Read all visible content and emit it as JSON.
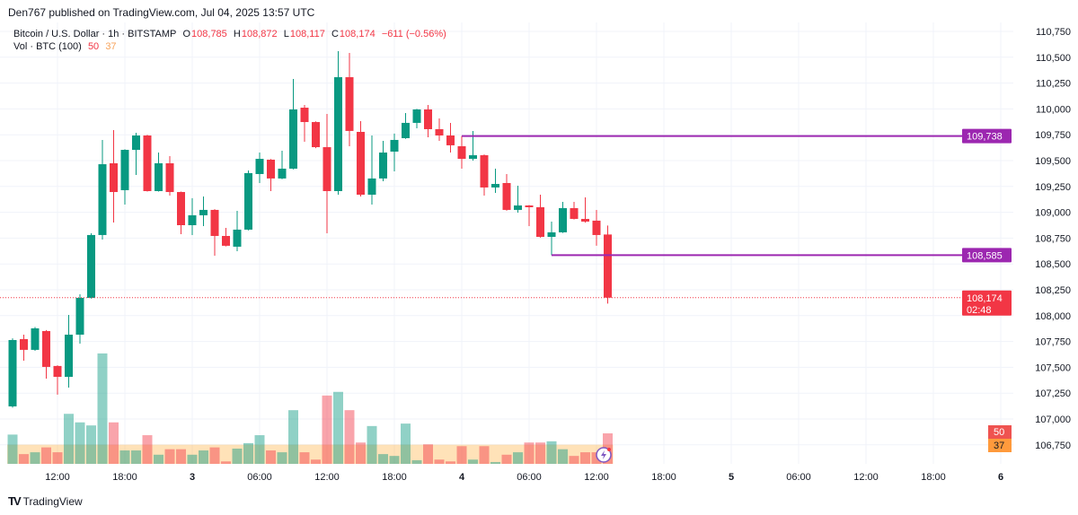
{
  "header": {
    "published": "Den767 published on TradingView.com, Jul 04, 2025 13:57 UTC"
  },
  "legend": {
    "symbol": "Bitcoin / U.S. Dollar · 1h · BITSTAMP",
    "o_label": "O",
    "o": "108,785",
    "h_label": "H",
    "h": "108,872",
    "l_label": "L",
    "l": "108,117",
    "c_label": "C",
    "c": "108,174",
    "change": "−611 (−0.56%)",
    "vol_label": "Vol · BTC (100)",
    "vol": "50",
    "vol_ma": "37"
  },
  "footer": {
    "logo_text": "TradingView"
  },
  "colors": {
    "up": "#089981",
    "down": "#f23645",
    "level": "#9c27b0",
    "vol_ma": "#ff9800"
  },
  "chart_data": {
    "type": "candlestick",
    "interval": "1h",
    "first_bar": "2025-07-02 08:00",
    "ylim": [
      106650,
      110850
    ],
    "price_ticks": [
      "110,750",
      "110,500",
      "110,250",
      "110,000",
      "109,750",
      "109,500",
      "109,250",
      "109,000",
      "108,750",
      "108,500",
      "108,250",
      "108,000",
      "107,750",
      "107,500",
      "107,250",
      "107,000",
      "106,750"
    ],
    "time_ticks": [
      {
        "label": "12:00",
        "t": "2025-07-02 12:00",
        "bold": false
      },
      {
        "label": "18:00",
        "t": "2025-07-02 18:00",
        "bold": false
      },
      {
        "label": "3",
        "t": "2025-07-03 00:00",
        "bold": true
      },
      {
        "label": "06:00",
        "t": "2025-07-03 06:00",
        "bold": false
      },
      {
        "label": "12:00",
        "t": "2025-07-03 12:00",
        "bold": false
      },
      {
        "label": "18:00",
        "t": "2025-07-03 18:00",
        "bold": false
      },
      {
        "label": "4",
        "t": "2025-07-04 00:00",
        "bold": true
      },
      {
        "label": "06:00",
        "t": "2025-07-04 06:00",
        "bold": false
      },
      {
        "label": "12:00",
        "t": "2025-07-04 12:00",
        "bold": false
      },
      {
        "label": "18:00",
        "t": "2025-07-04 18:00",
        "bold": false
      },
      {
        "label": "5",
        "t": "2025-07-05 00:00",
        "bold": true
      },
      {
        "label": "06:00",
        "t": "2025-07-05 06:00",
        "bold": false
      },
      {
        "label": "12:00",
        "t": "2025-07-05 12:00",
        "bold": false
      },
      {
        "label": "18:00",
        "t": "2025-07-05 18:00",
        "bold": false
      },
      {
        "label": "6",
        "t": "2025-07-06 00:00",
        "bold": true
      }
    ],
    "candles_columns": [
      "open",
      "high",
      "low",
      "close",
      "volume"
    ],
    "candles": [
      [
        107122,
        107780,
        107110,
        107764,
        48
      ],
      [
        107773,
        107816,
        107564,
        107669,
        16
      ],
      [
        107669,
        107890,
        107660,
        107877,
        19
      ],
      [
        107851,
        107860,
        107391,
        107504,
        27
      ],
      [
        107513,
        107520,
        107235,
        107408,
        19
      ],
      [
        107408,
        108007,
        107304,
        107816,
        82
      ],
      [
        107816,
        108207,
        107729,
        108172,
        68
      ],
      [
        108172,
        108797,
        108165,
        108780,
        63
      ],
      [
        108780,
        109700,
        108736,
        109465,
        181
      ],
      [
        109474,
        109795,
        108901,
        109196,
        68
      ],
      [
        109214,
        109610,
        109075,
        109604,
        22
      ],
      [
        109604,
        109769,
        109361,
        109743,
        22
      ],
      [
        109743,
        109750,
        109200,
        109205,
        47
      ],
      [
        109205,
        109578,
        109200,
        109474,
        15
      ],
      [
        109474,
        109543,
        109162,
        109196,
        24
      ],
      [
        109196,
        109200,
        108788,
        108875,
        24
      ],
      [
        108875,
        109136,
        108780,
        108971,
        15
      ],
      [
        108971,
        109153,
        108866,
        109023,
        22
      ],
      [
        109023,
        109030,
        108580,
        108771,
        27
      ],
      [
        108771,
        108849,
        108670,
        108676,
        4
      ],
      [
        108667,
        109014,
        108623,
        108832,
        25
      ],
      [
        108832,
        109405,
        108825,
        109379,
        34
      ],
      [
        109370,
        109578,
        109283,
        109517,
        47
      ],
      [
        109509,
        109515,
        109205,
        109327,
        22
      ],
      [
        109327,
        109596,
        109320,
        109422,
        19
      ],
      [
        109422,
        110290,
        109415,
        109995,
        88
      ],
      [
        110012,
        110038,
        109682,
        109873,
        19
      ],
      [
        109873,
        109880,
        109620,
        109630,
        7
      ],
      [
        109630,
        109951,
        108797,
        109205,
        112
      ],
      [
        109205,
        110559,
        109170,
        110307,
        118
      ],
      [
        110307,
        110542,
        109639,
        109787,
        88
      ],
      [
        109778,
        109882,
        109153,
        109170,
        35
      ],
      [
        109170,
        109743,
        109075,
        109327,
        62
      ],
      [
        109327,
        109691,
        109300,
        109578,
        16
      ],
      [
        109587,
        109761,
        109396,
        109700,
        13
      ],
      [
        109717,
        109960,
        109710,
        109865,
        66
      ],
      [
        109865,
        110000,
        109813,
        109995,
        6
      ],
      [
        109995,
        110038,
        109726,
        109804,
        32
      ],
      [
        109804,
        109908,
        109691,
        109743,
        7
      ],
      [
        109743,
        109865,
        109578,
        109648,
        4
      ],
      [
        109639,
        109738,
        109422,
        109517,
        29
      ],
      [
        109517,
        109787,
        109500,
        109552,
        7
      ],
      [
        109552,
        109560,
        109162,
        109240,
        29
      ],
      [
        109240,
        109422,
        109188,
        109274,
        3
      ],
      [
        109283,
        109370,
        109015,
        109023,
        15
      ],
      [
        109023,
        109257,
        108997,
        109066,
        19
      ],
      [
        109066,
        109070,
        108866,
        109049,
        35
      ],
      [
        109049,
        109170,
        108755,
        108762,
        35
      ],
      [
        108762,
        108910,
        108585,
        108806,
        37
      ],
      [
        108806,
        109101,
        108800,
        109040,
        24
      ],
      [
        109040,
        109101,
        108930,
        108936,
        13
      ],
      [
        108936,
        109144,
        108900,
        108910,
        19
      ],
      [
        108919,
        109023,
        108676,
        108780,
        19
      ],
      [
        108785,
        108872,
        108117,
        108174,
        50
      ]
    ],
    "vol_ma_value": 37,
    "levels": [
      {
        "label": "109,738",
        "price": 109738,
        "from": "2025-07-04 00:00"
      },
      {
        "label": "108,585",
        "price": 108585,
        "from": "2025-07-04 08:00"
      }
    ],
    "last_price": {
      "label": "108,174",
      "price": 108174,
      "countdown": "02:48"
    },
    "vol_badges": {
      "volume": "50",
      "ma": "37"
    }
  }
}
